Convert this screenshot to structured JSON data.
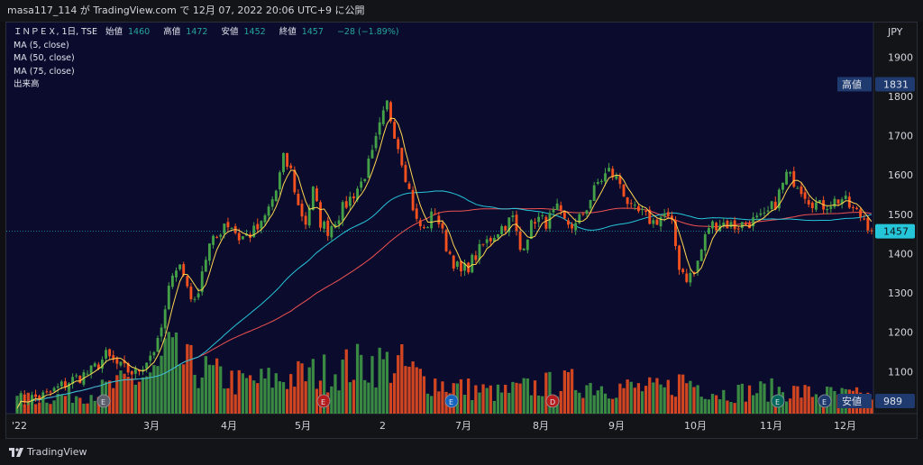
{
  "topbar": {
    "text": "masa117_114 が TradingView.com で 12月 07, 2022 20:06 UTC+9 に公開"
  },
  "legend": {
    "symbol": "ＩＮＰＥＸ, 1日, TSE",
    "open_label": "始値",
    "open": "1460",
    "high_label": "高値",
    "high": "1472",
    "low_label": "安値",
    "low": "1452",
    "close_label": "終値",
    "close": "1457",
    "change": "−28 (−1.89%)",
    "indicators": [
      "MA (5, close)",
      "MA (50, close)",
      "MA (75, close)",
      "出来高"
    ]
  },
  "brand": {
    "name": "TradingView"
  },
  "colors": {
    "up": "#43a047",
    "down": "#f4511e",
    "ma5": "#ffd54f",
    "ma50": "#26c6da",
    "ma75": "#ef5350",
    "panel": "#0b0b2e",
    "price_line": "#26c6da"
  },
  "chart_data": {
    "type": "candlestick",
    "currency": "JPY",
    "y_range": [
      1000,
      1950
    ],
    "y_ticks": [
      1100,
      1200,
      1300,
      1400,
      1500,
      1600,
      1700,
      1800,
      1900
    ],
    "x_labels": [
      "'22",
      "3月",
      "4月",
      "5月",
      "2",
      "7月",
      "8月",
      "9月",
      "10月",
      "11月",
      "12月"
    ],
    "price_markers": [
      {
        "label": "高値",
        "value": 1831
      },
      {
        "label": "",
        "value": 1457
      },
      {
        "label": "安値",
        "value": 989
      }
    ],
    "event_markers": [
      "E",
      "E",
      "E",
      "D",
      "E",
      "E"
    ],
    "price_path": [
      [
        0,
        1025
      ],
      [
        8,
        1040
      ],
      [
        14,
        1075
      ],
      [
        20,
        1100
      ],
      [
        24,
        1140
      ],
      [
        28,
        1110
      ],
      [
        32,
        1095
      ],
      [
        35,
        1130
      ],
      [
        38,
        1170
      ],
      [
        40,
        1250
      ],
      [
        42,
        1360
      ],
      [
        44,
        1370
      ],
      [
        46,
        1320
      ],
      [
        48,
        1270
      ],
      [
        50,
        1360
      ],
      [
        52,
        1420
      ],
      [
        54,
        1440
      ],
      [
        56,
        1480
      ],
      [
        58,
        1470
      ],
      [
        60,
        1440
      ],
      [
        63,
        1450
      ],
      [
        66,
        1470
      ],
      [
        70,
        1560
      ],
      [
        72,
        1640
      ],
      [
        74,
        1610
      ],
      [
        76,
        1520
      ],
      [
        78,
        1480
      ],
      [
        80,
        1560
      ],
      [
        82,
        1480
      ],
      [
        84,
        1460
      ],
      [
        87,
        1500
      ],
      [
        90,
        1540
      ],
      [
        93,
        1580
      ],
      [
        96,
        1650
      ],
      [
        98,
        1720
      ],
      [
        100,
        1780
      ],
      [
        102,
        1710
      ],
      [
        104,
        1640
      ],
      [
        106,
        1560
      ],
      [
        108,
        1480
      ],
      [
        110,
        1460
      ],
      [
        113,
        1510
      ],
      [
        116,
        1420
      ],
      [
        118,
        1380
      ],
      [
        120,
        1350
      ],
      [
        122,
        1370
      ],
      [
        126,
        1420
      ],
      [
        130,
        1460
      ],
      [
        134,
        1490
      ],
      [
        136,
        1410
      ],
      [
        138,
        1450
      ],
      [
        140,
        1490
      ],
      [
        143,
        1480
      ],
      [
        146,
        1510
      ],
      [
        148,
        1480
      ],
      [
        151,
        1470
      ],
      [
        154,
        1520
      ],
      [
        157,
        1580
      ],
      [
        160,
        1610
      ],
      [
        163,
        1580
      ],
      [
        166,
        1510
      ],
      [
        169,
        1500
      ],
      [
        172,
        1480
      ],
      [
        175,
        1500
      ],
      [
        177,
        1470
      ],
      [
        179,
        1370
      ],
      [
        181,
        1340
      ],
      [
        183,
        1350
      ],
      [
        185,
        1410
      ],
      [
        187,
        1470
      ],
      [
        190,
        1480
      ],
      [
        194,
        1470
      ],
      [
        198,
        1480
      ],
      [
        202,
        1490
      ],
      [
        205,
        1530
      ],
      [
        208,
        1600
      ],
      [
        211,
        1580
      ],
      [
        214,
        1540
      ],
      [
        217,
        1520
      ],
      [
        220,
        1530
      ],
      [
        223,
        1540
      ],
      [
        226,
        1510
      ],
      [
        229,
        1490
      ],
      [
        231,
        1460
      ]
    ],
    "volume_profile": [
      [
        0,
        40
      ],
      [
        20,
        60
      ],
      [
        38,
        120
      ],
      [
        40,
        180
      ],
      [
        46,
        140
      ],
      [
        60,
        90
      ],
      [
        70,
        100
      ],
      [
        82,
        120
      ],
      [
        96,
        150
      ],
      [
        104,
        140
      ],
      [
        110,
        100
      ],
      [
        118,
        80
      ],
      [
        130,
        60
      ],
      [
        140,
        80
      ],
      [
        150,
        90
      ],
      [
        160,
        80
      ],
      [
        175,
        70
      ],
      [
        180,
        100
      ],
      [
        190,
        60
      ],
      [
        205,
        70
      ],
      [
        215,
        60
      ],
      [
        231,
        50
      ]
    ]
  }
}
